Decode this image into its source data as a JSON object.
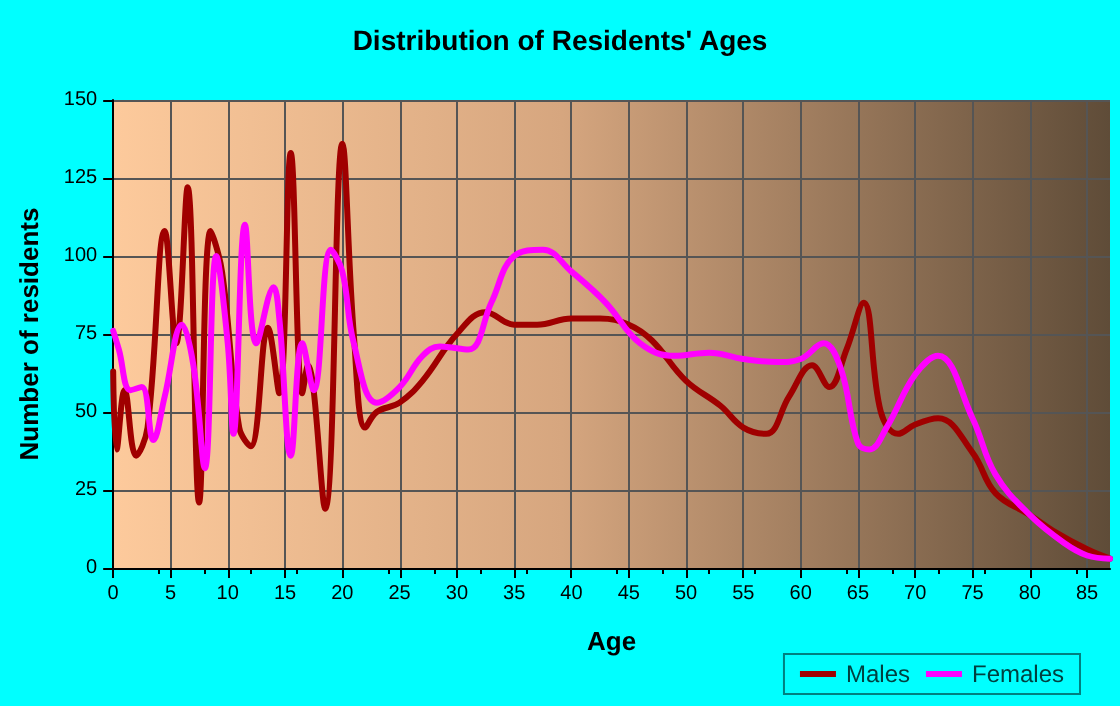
{
  "chart_data": {
    "type": "line",
    "title": "Distribution of Residents' Ages",
    "xlabel": "Age",
    "ylabel": "Number of residents",
    "xlim": [
      0,
      87
    ],
    "xticks": [
      0,
      5,
      10,
      15,
      20,
      25,
      30,
      35,
      40,
      45,
      50,
      55,
      60,
      65,
      70,
      75,
      80,
      85
    ],
    "ylim": [
      0,
      150
    ],
    "yticks": [
      0,
      25,
      50,
      75,
      100,
      125,
      150
    ],
    "grid": true,
    "legend": "bottom right",
    "marker": "none",
    "line_style": "solid",
    "series": [
      {
        "name": "Males",
        "color": "#a00000",
        "x": [
          0,
          0.3,
          1,
          2,
          3,
          4.5,
          5.5,
          6.5,
          7.5,
          8.5,
          9.5,
          11,
          12,
          13.5,
          14.5,
          15.5,
          16.5,
          17,
          18.5,
          20,
          21,
          22,
          23,
          25,
          27,
          30,
          32.5,
          35,
          37,
          40,
          42.5,
          45,
          47,
          50,
          53,
          55,
          57,
          59,
          61,
          62.5,
          64,
          65.5,
          67,
          68.5,
          70,
          72,
          75,
          77,
          80,
          82,
          85,
          87
        ],
        "values": [
          63,
          38,
          57,
          36,
          45,
          108,
          72,
          122,
          21,
          108,
          95,
          45,
          39,
          77,
          56,
          133,
          56,
          65,
          19,
          136,
          75,
          45,
          50,
          53,
          60,
          75,
          82,
          78,
          78,
          80,
          80,
          78,
          73,
          60,
          52,
          45,
          43,
          55,
          65,
          58,
          70,
          85,
          50,
          43,
          46,
          48,
          37,
          24,
          17,
          12,
          6,
          3
        ]
      },
      {
        "name": "Females",
        "color": "#ff00ff",
        "x": [
          0,
          0.5,
          1.5,
          2.5,
          3.5,
          4.5,
          6,
          7,
          8,
          9,
          10,
          10.5,
          11.5,
          12.5,
          14,
          14.5,
          15.5,
          16.5,
          17.5,
          19,
          20,
          21,
          23,
          25,
          27,
          28.5,
          31,
          33,
          35,
          37.5,
          40,
          43,
          46,
          49,
          52,
          55,
          58,
          60,
          62,
          63.5,
          65,
          66,
          67.5,
          70,
          72,
          75,
          77,
          80,
          83,
          85,
          87
        ],
        "values": [
          76,
          70,
          57,
          58,
          41,
          55,
          78,
          65,
          32,
          100,
          72,
          43,
          110,
          72,
          90,
          80,
          36,
          72,
          57,
          102,
          95,
          72,
          53,
          58,
          68,
          71,
          70,
          85,
          100,
          102,
          95,
          85,
          72,
          68,
          69,
          67,
          66,
          67,
          72,
          64,
          40,
          38,
          45,
          62,
          68,
          48,
          30,
          17,
          8,
          4,
          3
        ]
      }
    ]
  }
}
